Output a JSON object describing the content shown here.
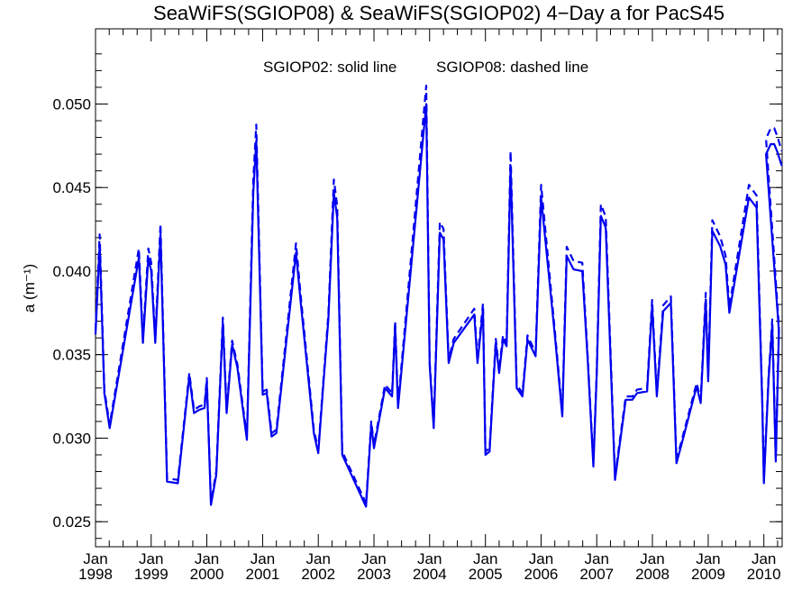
{
  "chart_data": {
    "type": "line",
    "title": "SeaWiFS(SGIOP08) & SeaWiFS(SGIOP02) 4−Day a for PacS45",
    "annotation_solid": "SGIOP02: solid line",
    "annotation_dashed": "SGIOP08: dashed line",
    "xlabel": "",
    "ylabel": "a (m⁻¹)",
    "ylim": [
      0.0235,
      0.0545
    ],
    "xlim": [
      "1998-01-01",
      "2010-05-01"
    ],
    "x_ticks": [
      {
        "month": "Jan",
        "year": "1998",
        "date": "1998-01-01"
      },
      {
        "month": "Jan",
        "year": "1999",
        "date": "1999-01-01"
      },
      {
        "month": "Jan",
        "year": "2000",
        "date": "2000-01-01"
      },
      {
        "month": "Jan",
        "year": "2001",
        "date": "2001-01-01"
      },
      {
        "month": "Jan",
        "year": "2002",
        "date": "2002-01-01"
      },
      {
        "month": "Jan",
        "year": "2003",
        "date": "2003-01-01"
      },
      {
        "month": "Jan",
        "year": "2004",
        "date": "2004-01-01"
      },
      {
        "month": "Jan",
        "year": "2005",
        "date": "2005-01-01"
      },
      {
        "month": "Jan",
        "year": "2006",
        "date": "2006-01-01"
      },
      {
        "month": "Jan",
        "year": "2007",
        "date": "2007-01-01"
      },
      {
        "month": "Jan",
        "year": "2008",
        "date": "2008-01-01"
      },
      {
        "month": "Jan",
        "year": "2009",
        "date": "2009-01-01"
      },
      {
        "month": "Jan",
        "year": "2010",
        "date": "2010-01-01"
      }
    ],
    "y_ticks": [
      {
        "value": 0.025,
        "label": "0.025"
      },
      {
        "value": 0.03,
        "label": "0.030"
      },
      {
        "value": 0.035,
        "label": "0.035"
      },
      {
        "value": 0.04,
        "label": "0.040"
      },
      {
        "value": 0.045,
        "label": "0.045"
      },
      {
        "value": 0.05,
        "label": "0.050"
      }
    ],
    "series": [
      {
        "style": "solid",
        "color": "#0000ee",
        "x": [
          "1998-01-01",
          "1998-01-28",
          "1998-02-28",
          "1998-04-04",
          "1998-10-12",
          "1998-11-08",
          "1998-12-13",
          "1999-01-01",
          "1999-01-28",
          "1999-03-03",
          "1999-04-15",
          "1999-06-25",
          "1999-09-08",
          "1999-10-09",
          "1999-11-12",
          "1999-12-17",
          "2000-01-01",
          "2000-01-28",
          "2000-03-03",
          "2000-04-15",
          "2000-05-10",
          "2000-06-15",
          "2000-07-20",
          "2000-09-20",
          "2000-11-01",
          "2000-11-20",
          "2001-01-01",
          "2001-01-28",
          "2001-03-01",
          "2001-04-01",
          "2001-08-08",
          "2001-09-06",
          "2001-12-03",
          "2002-01-01",
          "2002-02-01",
          "2002-03-08",
          "2002-04-13",
          "2002-05-05",
          "2002-06-07",
          "2002-11-10",
          "2002-12-14",
          "2003-01-01",
          "2003-03-15",
          "2003-04-30",
          "2003-05-20",
          "2003-06-08",
          "2003-12-10",
          "2004-01-01",
          "2004-01-28",
          "2004-03-08",
          "2004-04-01",
          "2004-05-05",
          "2004-06-07",
          "2004-10-20",
          "2004-11-10",
          "2004-12-16",
          "2005-01-01",
          "2005-01-28",
          "2005-03-10",
          "2005-04-01",
          "2005-04-26",
          "2005-05-20",
          "2005-06-15",
          "2005-07-25",
          "2005-09-01",
          "2005-10-04",
          "2005-11-26",
          "2006-01-01",
          "2006-04-04",
          "2006-05-20",
          "2006-06-18",
          "2006-08-02",
          "2006-09-28",
          "2006-11-04",
          "2006-12-10",
          "2007-01-01",
          "2007-01-28",
          "2007-03-01",
          "2007-05-01",
          "2007-07-10",
          "2007-08-23",
          "2007-09-22",
          "2007-11-27",
          "2007-12-30",
          "2008-01-30",
          "2008-03-12",
          "2008-05-01",
          "2008-06-07",
          "2008-07-12",
          "2008-10-17",
          "2008-11-13",
          "2008-12-16",
          "2009-01-01",
          "2009-01-28",
          "2009-03-20",
          "2009-04-25",
          "2009-05-20",
          "2009-09-25",
          "2009-11-14",
          "2009-12-22",
          "2010-01-01",
          "2010-02-01",
          "2010-02-25",
          "2010-03-20",
          "2010-04-10"
        ],
        "values": [
          0.0362,
          0.0416,
          0.0327,
          0.0306,
          0.0408,
          0.0357,
          0.0408,
          0.04,
          0.0357,
          0.0422,
          0.0274,
          0.0273,
          0.0337,
          0.0315,
          0.0317,
          0.0318,
          0.0334,
          0.026,
          0.0278,
          0.0369,
          0.0315,
          0.0356,
          0.0342,
          0.0299,
          0.0447,
          0.0478,
          0.0326,
          0.0327,
          0.0301,
          0.0303,
          0.0411,
          0.0383,
          0.0303,
          0.0291,
          0.033,
          0.0371,
          0.0447,
          0.0432,
          0.029,
          0.0259,
          0.0308,
          0.0294,
          0.033,
          0.0325,
          0.0367,
          0.0318,
          0.05,
          0.0344,
          0.0306,
          0.0423,
          0.0419,
          0.0345,
          0.0357,
          0.0374,
          0.0345,
          0.0377,
          0.029,
          0.0292,
          0.0357,
          0.0339,
          0.0359,
          0.0355,
          0.0463,
          0.033,
          0.0325,
          0.0359,
          0.0349,
          0.0444,
          0.0359,
          0.0313,
          0.0409,
          0.0401,
          0.04,
          0.0345,
          0.0283,
          0.0338,
          0.0433,
          0.0426,
          0.0275,
          0.0323,
          0.0323,
          0.0327,
          0.0328,
          0.0379,
          0.0325,
          0.0376,
          0.0381,
          0.0285,
          0.0297,
          0.0331,
          0.0321,
          0.0383,
          0.0334,
          0.0424,
          0.0415,
          0.0404,
          0.0375,
          0.0444,
          0.0438,
          0.0319,
          0.0273,
          0.0335,
          0.0368,
          0.0286,
          0.0364
        ],
        "tail_values": [
          0.047,
          0.0476,
          0.0476,
          0.0471,
          0.0463
        ]
      },
      {
        "style": "dashed",
        "color": "#0000ee",
        "values_offset_profile": "higher_at_peaks"
      }
    ]
  }
}
